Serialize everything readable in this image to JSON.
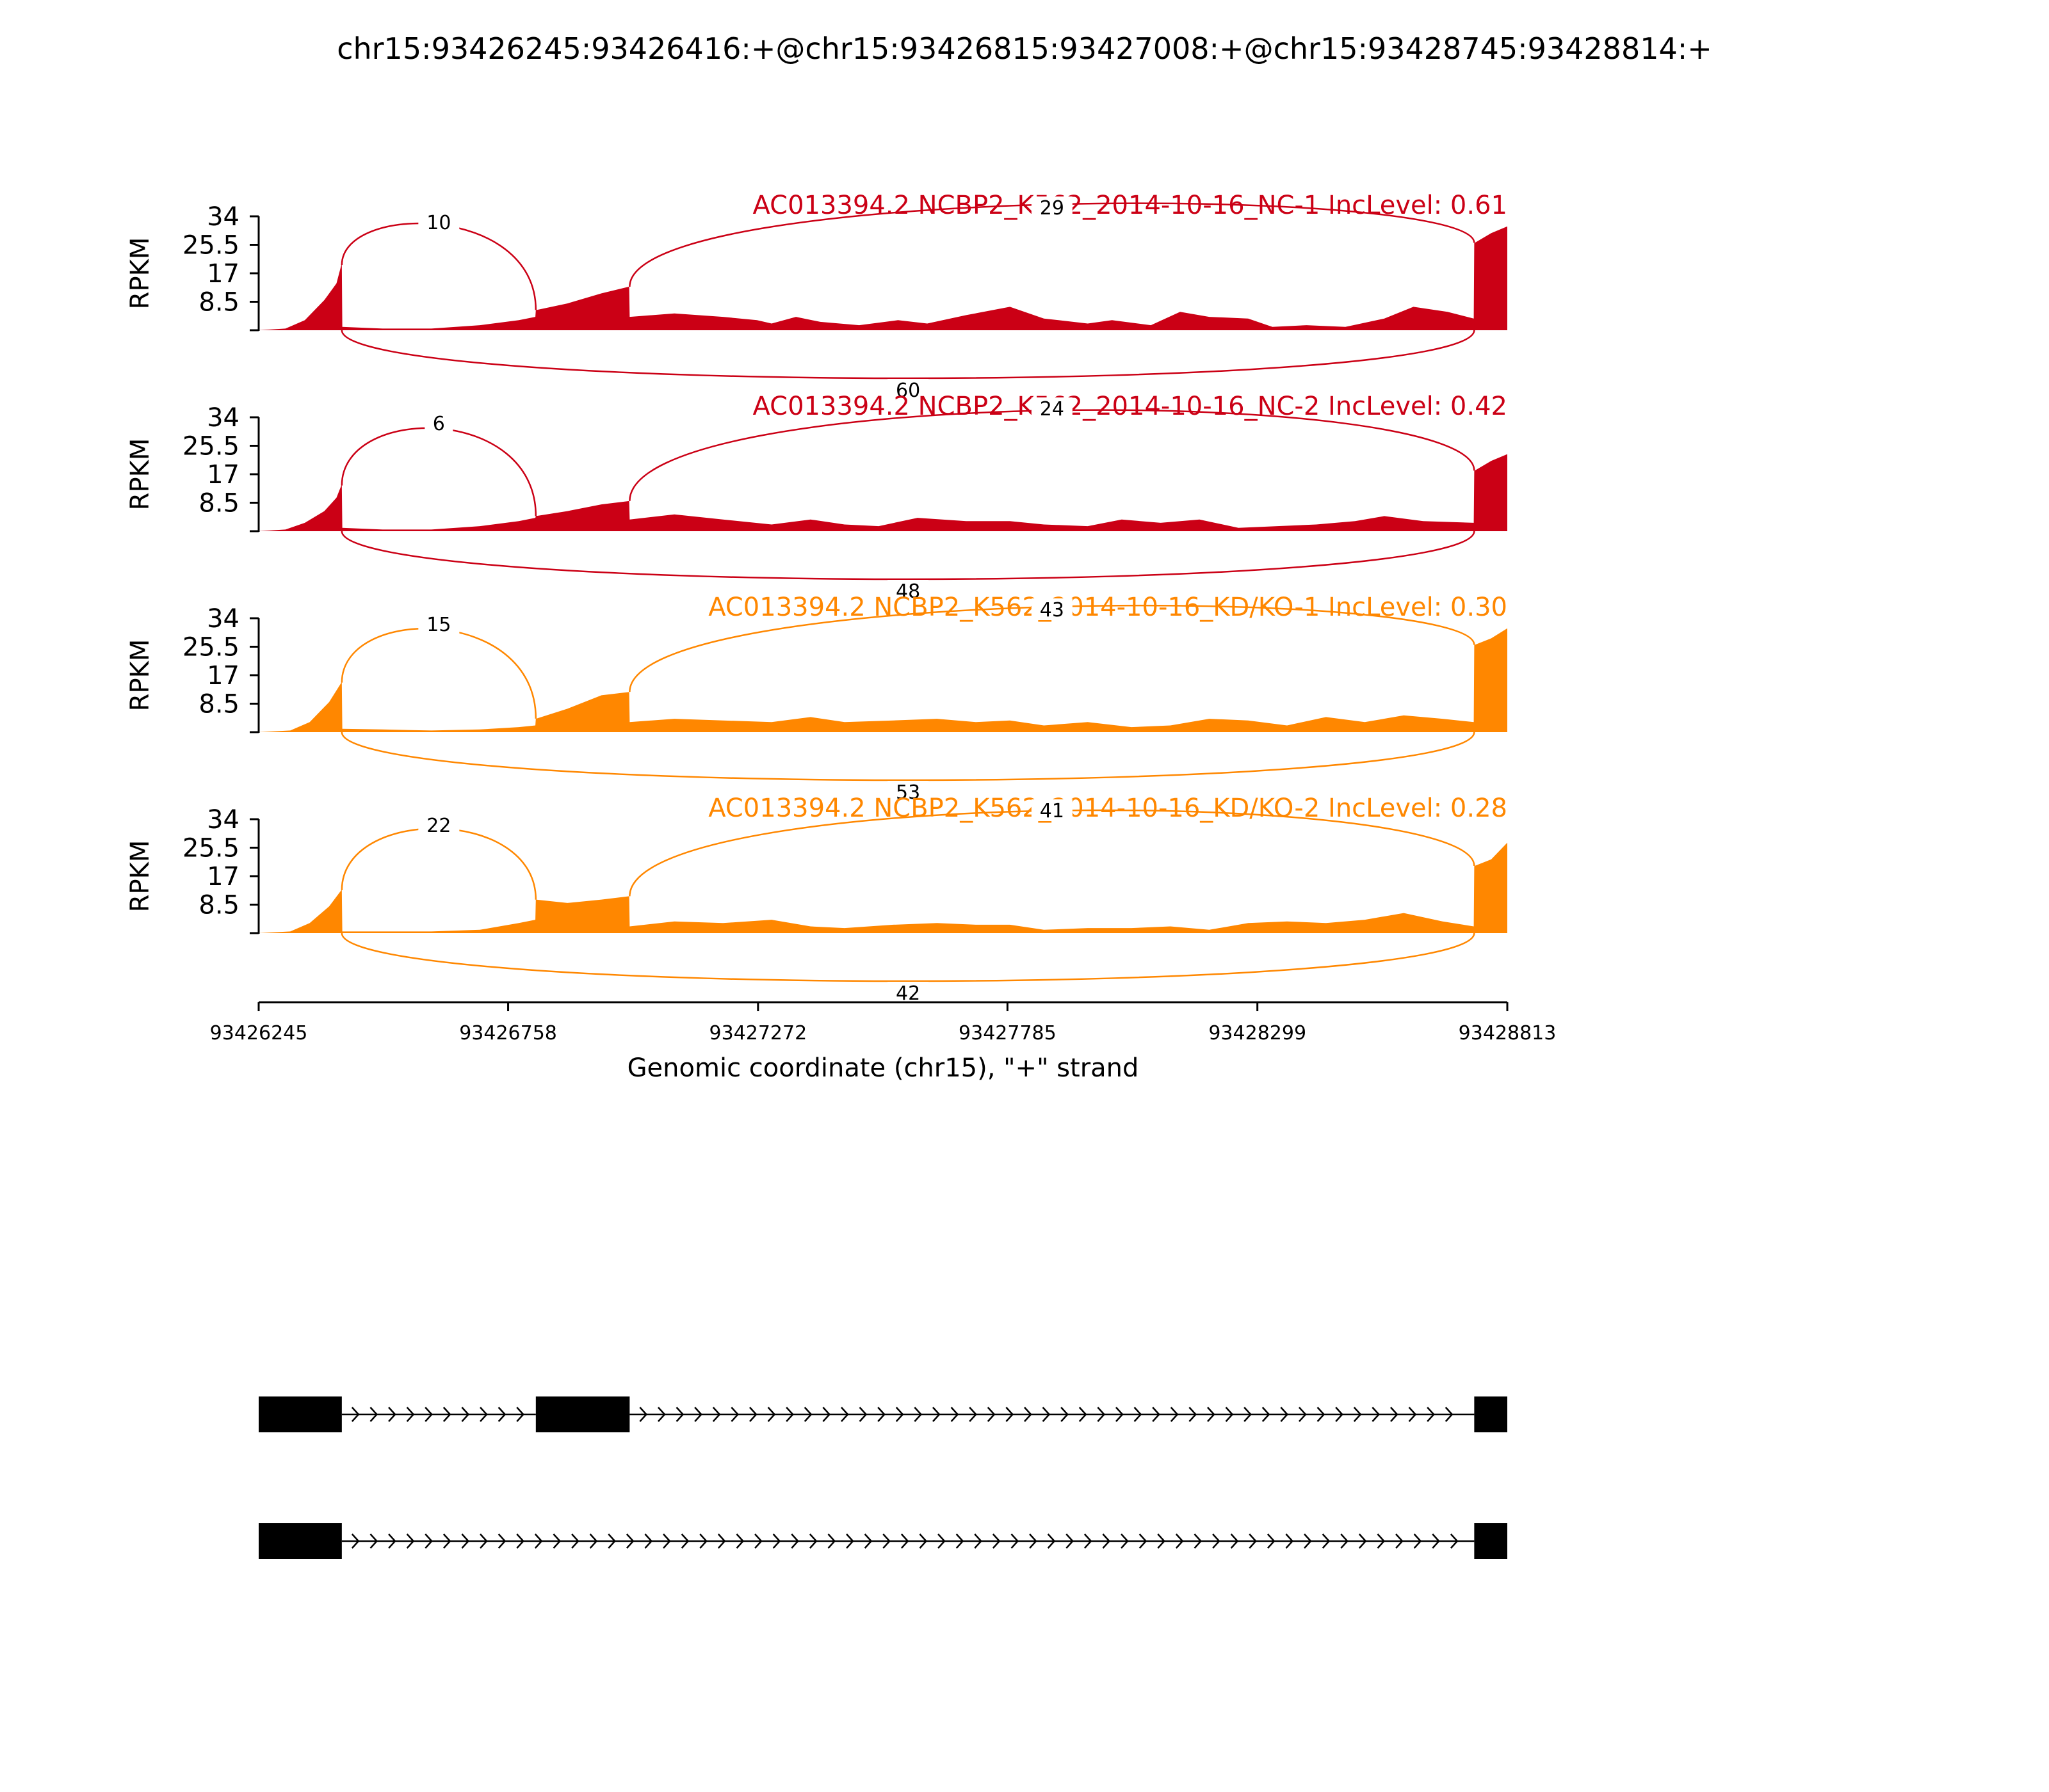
{
  "title": "chr15:93426245:93426416:+@chr15:93426815:93427008:+@chr15:93428745:93428814:+",
  "chart_data": {
    "type": "area",
    "title": "chr15:93426245:93426416:+@chr15:93426815:93427008:+@chr15:93428745:93428814:+",
    "xlabel": "Genomic coordinate (chr15), \"+\" strand",
    "ylabel": "RPKM",
    "xlim": [
      93426245,
      93428813
    ],
    "ylim": [
      0,
      34
    ],
    "yticks": [
      "8.5",
      "17",
      "25.5",
      "34"
    ],
    "xticks": [
      "93426245",
      "93426758",
      "93427272",
      "93427785",
      "93428299",
      "93428813"
    ],
    "exons": [
      {
        "start": 93426245,
        "end": 93426416
      },
      {
        "start": 93426815,
        "end": 93427008
      },
      {
        "start": 93428745,
        "end": 93428813
      }
    ],
    "junction_positions": {
      "exon1_end": 93426416,
      "exon2_start": 93426815,
      "exon2_end": 93427008,
      "exon3_start": 93428745
    },
    "series": [
      {
        "name": "AC013394.2 NCBP2_K562_2014-10-16_NC-1 IncLevel: 0.61",
        "color": "#cb0015",
        "junctions": {
          "exon1_exon2": 10,
          "exon2_exon3": 29,
          "exon1_exon3": 60
        },
        "coverage": [
          [
            93426245,
            0
          ],
          [
            93426300,
            0.5
          ],
          [
            93426340,
            3
          ],
          [
            93426380,
            9
          ],
          [
            93426405,
            14
          ],
          [
            93426416,
            20
          ],
          [
            93426417,
            1
          ],
          [
            93426500,
            0.5
          ],
          [
            93426600,
            0.5
          ],
          [
            93426700,
            1.5
          ],
          [
            93426780,
            3
          ],
          [
            93426814,
            4
          ],
          [
            93426815,
            6
          ],
          [
            93426880,
            8
          ],
          [
            93426950,
            11
          ],
          [
            93427007,
            13
          ],
          [
            93427008,
            4
          ],
          [
            93427100,
            5
          ],
          [
            93427200,
            4
          ],
          [
            93427270,
            3
          ],
          [
            93427300,
            2
          ],
          [
            93427350,
            4
          ],
          [
            93427400,
            2.5
          ],
          [
            93427480,
            1.5
          ],
          [
            93427560,
            3
          ],
          [
            93427620,
            2
          ],
          [
            93427700,
            4.5
          ],
          [
            93427790,
            7
          ],
          [
            93427860,
            3.5
          ],
          [
            93427950,
            2
          ],
          [
            93428000,
            3
          ],
          [
            93428080,
            1.5
          ],
          [
            93428140,
            5.5
          ],
          [
            93428200,
            4
          ],
          [
            93428280,
            3.5
          ],
          [
            93428330,
            1
          ],
          [
            93428400,
            1.5
          ],
          [
            93428480,
            1
          ],
          [
            93428560,
            3.5
          ],
          [
            93428620,
            7
          ],
          [
            93428690,
            5.5
          ],
          [
            93428744,
            3.5
          ],
          [
            93428745,
            26
          ],
          [
            93428780,
            29
          ],
          [
            93428813,
            31
          ]
        ]
      },
      {
        "name": "AC013394.2 NCBP2_K562_2014-10-16_NC-2 IncLevel: 0.42",
        "color": "#cb0015",
        "junctions": {
          "exon1_exon2": 6,
          "exon2_exon3": 24,
          "exon1_exon3": 48
        },
        "coverage": [
          [
            93426245,
            0
          ],
          [
            93426300,
            0.5
          ],
          [
            93426340,
            2.5
          ],
          [
            93426380,
            6
          ],
          [
            93426405,
            10
          ],
          [
            93426416,
            14
          ],
          [
            93426417,
            1
          ],
          [
            93426500,
            0.5
          ],
          [
            93426600,
            0.5
          ],
          [
            93426700,
            1.5
          ],
          [
            93426780,
            3
          ],
          [
            93426814,
            4
          ],
          [
            93426815,
            4.5
          ],
          [
            93426880,
            6
          ],
          [
            93426950,
            8
          ],
          [
            93427007,
            9
          ],
          [
            93427008,
            3.5
          ],
          [
            93427100,
            5
          ],
          [
            93427200,
            3.5
          ],
          [
            93427300,
            2
          ],
          [
            93427380,
            3.5
          ],
          [
            93427450,
            2
          ],
          [
            93427520,
            1.5
          ],
          [
            93427600,
            4
          ],
          [
            93427700,
            3
          ],
          [
            93427790,
            3
          ],
          [
            93427860,
            2
          ],
          [
            93427950,
            1.5
          ],
          [
            93428020,
            3.5
          ],
          [
            93428100,
            2.5
          ],
          [
            93428180,
            3.5
          ],
          [
            93428260,
            1
          ],
          [
            93428340,
            1.5
          ],
          [
            93428420,
            2
          ],
          [
            93428500,
            3
          ],
          [
            93428560,
            4.5
          ],
          [
            93428640,
            3
          ],
          [
            93428744,
            2.5
          ],
          [
            93428745,
            18
          ],
          [
            93428780,
            21
          ],
          [
            93428813,
            23
          ]
        ]
      },
      {
        "name": "AC013394.2 NCBP2_K562_2014-10-16_KD/KO-1 IncLevel: 0.30",
        "color": "#ff8700",
        "junctions": {
          "exon1_exon2": 15,
          "exon2_exon3": 43,
          "exon1_exon3": 53
        },
        "coverage": [
          [
            93426245,
            0
          ],
          [
            93426310,
            0.5
          ],
          [
            93426350,
            3
          ],
          [
            93426390,
            9
          ],
          [
            93426416,
            15
          ],
          [
            93426417,
            1
          ],
          [
            93426500,
            0.8
          ],
          [
            93426600,
            0.5
          ],
          [
            93426700,
            0.8
          ],
          [
            93426780,
            1.5
          ],
          [
            93426814,
            2
          ],
          [
            93426815,
            4
          ],
          [
            93426880,
            7
          ],
          [
            93426950,
            11
          ],
          [
            93427007,
            12
          ],
          [
            93427008,
            3
          ],
          [
            93427100,
            4
          ],
          [
            93427200,
            3.5
          ],
          [
            93427300,
            3
          ],
          [
            93427380,
            4.5
          ],
          [
            93427450,
            3
          ],
          [
            93427550,
            3.5
          ],
          [
            93427640,
            4
          ],
          [
            93427720,
            3
          ],
          [
            93427790,
            3.5
          ],
          [
            93427860,
            2
          ],
          [
            93427950,
            3
          ],
          [
            93428040,
            1.5
          ],
          [
            93428120,
            2
          ],
          [
            93428200,
            4
          ],
          [
            93428280,
            3.5
          ],
          [
            93428360,
            2
          ],
          [
            93428440,
            4.5
          ],
          [
            93428520,
            3
          ],
          [
            93428600,
            5
          ],
          [
            93428680,
            4
          ],
          [
            93428744,
            3
          ],
          [
            93428745,
            26
          ],
          [
            93428780,
            28
          ],
          [
            93428813,
            31
          ]
        ]
      },
      {
        "name": "AC013394.2 NCBP2_K562_2014-10-16_KD/KO-2 IncLevel: 0.28",
        "color": "#ff8700",
        "junctions": {
          "exon1_exon2": 22,
          "exon2_exon3": 41,
          "exon1_exon3": 42
        },
        "coverage": [
          [
            93426245,
            0
          ],
          [
            93426310,
            0.5
          ],
          [
            93426350,
            3
          ],
          [
            93426390,
            8
          ],
          [
            93426416,
            13
          ],
          [
            93426417,
            0.5
          ],
          [
            93426500,
            0.5
          ],
          [
            93426600,
            0.5
          ],
          [
            93426700,
            1
          ],
          [
            93426780,
            3
          ],
          [
            93426814,
            4
          ],
          [
            93426815,
            10
          ],
          [
            93426880,
            9
          ],
          [
            93426950,
            10
          ],
          [
            93427007,
            11
          ],
          [
            93427008,
            2
          ],
          [
            93427100,
            3.5
          ],
          [
            93427200,
            3
          ],
          [
            93427300,
            4
          ],
          [
            93427380,
            2
          ],
          [
            93427450,
            1.5
          ],
          [
            93427550,
            2.5
          ],
          [
            93427640,
            3
          ],
          [
            93427720,
            2.5
          ],
          [
            93427790,
            2.5
          ],
          [
            93427860,
            1
          ],
          [
            93427950,
            1.5
          ],
          [
            93428040,
            1.5
          ],
          [
            93428120,
            2
          ],
          [
            93428200,
            1
          ],
          [
            93428280,
            3
          ],
          [
            93428360,
            3.5
          ],
          [
            93428440,
            3
          ],
          [
            93428520,
            4
          ],
          [
            93428600,
            6
          ],
          [
            93428680,
            3.5
          ],
          [
            93428744,
            2
          ],
          [
            93428745,
            20
          ],
          [
            93428780,
            22
          ],
          [
            93428813,
            27
          ]
        ]
      }
    ],
    "isoforms": [
      {
        "exons": [
          [
            93426245,
            93426416
          ],
          [
            93426815,
            93427008
          ],
          [
            93428745,
            93428813
          ]
        ]
      },
      {
        "exons": [
          [
            93426245,
            93426416
          ],
          [
            93428745,
            93428813
          ]
        ]
      }
    ]
  }
}
